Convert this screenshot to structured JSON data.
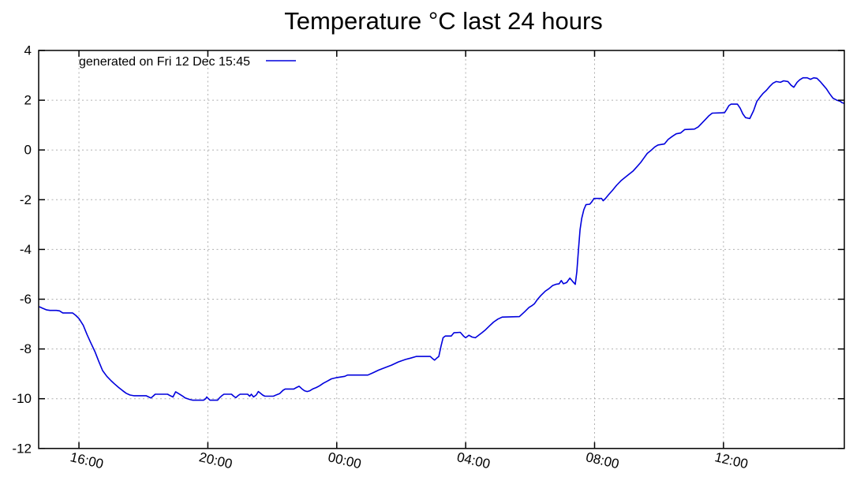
{
  "chart_data": {
    "type": "line",
    "title": "Temperature °C last 24 hours",
    "grid": true,
    "legend_position": "top-left-inside",
    "background_color": "#ffffff",
    "border_color": "#000000",
    "grid_color": "#b0b0b0",
    "x_axis": {
      "label": "",
      "start_time": "14:45",
      "end_time": "15:45",
      "span_hours": 25,
      "ticks": [
        {
          "label": "16:00",
          "hour": 16
        },
        {
          "label": "20:00",
          "hour": 20
        },
        {
          "label": "00:00",
          "hour": 24
        },
        {
          "label": "04:00",
          "hour": 28
        },
        {
          "label": "08:00",
          "hour": 32
        },
        {
          "label": "12:00",
          "hour": 36
        }
      ]
    },
    "y_axis": {
      "label": "",
      "ticks": [
        4,
        2,
        0,
        -2,
        -4,
        -6,
        -8,
        -10,
        -12
      ],
      "ylim": [
        -12,
        4
      ]
    },
    "series": [
      {
        "name": "generated on Fri 12 Dec 15:45",
        "color": "#0000dd",
        "points": [
          [
            "14:46",
            -6.3
          ],
          [
            "14:52",
            -6.36
          ],
          [
            "15:00",
            -6.43
          ],
          [
            "15:06",
            -6.45
          ],
          [
            "15:18",
            -6.45
          ],
          [
            "15:24",
            -6.47
          ],
          [
            "15:30",
            -6.55
          ],
          [
            "15:48",
            -6.55
          ],
          [
            "15:54",
            -6.65
          ],
          [
            "16:00",
            -6.78
          ],
          [
            "16:08",
            -7.05
          ],
          [
            "16:15",
            -7.42
          ],
          [
            "16:22",
            -7.75
          ],
          [
            "16:30",
            -8.12
          ],
          [
            "16:37",
            -8.5
          ],
          [
            "16:44",
            -8.87
          ],
          [
            "16:52",
            -9.1
          ],
          [
            "17:00",
            -9.28
          ],
          [
            "17:06",
            -9.4
          ],
          [
            "17:14",
            -9.55
          ],
          [
            "17:21",
            -9.67
          ],
          [
            "17:28",
            -9.78
          ],
          [
            "17:35",
            -9.85
          ],
          [
            "17:42",
            -9.88
          ],
          [
            "18:05",
            -9.88
          ],
          [
            "18:10",
            -9.93
          ],
          [
            "18:14",
            -9.97
          ],
          [
            "18:18",
            -9.9
          ],
          [
            "18:22",
            -9.82
          ],
          [
            "18:45",
            -9.82
          ],
          [
            "18:50",
            -9.88
          ],
          [
            "18:55",
            -9.93
          ],
          [
            "19:00",
            -9.72
          ],
          [
            "19:06",
            -9.8
          ],
          [
            "19:12",
            -9.88
          ],
          [
            "19:18",
            -9.97
          ],
          [
            "19:26",
            -10.03
          ],
          [
            "19:32",
            -10.06
          ],
          [
            "19:52",
            -10.06
          ],
          [
            "19:56",
            -10.0
          ],
          [
            "19:58",
            -9.93
          ],
          [
            "20:01",
            -10.0
          ],
          [
            "20:04",
            -10.06
          ],
          [
            "20:18",
            -10.06
          ],
          [
            "20:22",
            -9.96
          ],
          [
            "20:26",
            -9.88
          ],
          [
            "20:30",
            -9.82
          ],
          [
            "20:44",
            -9.82
          ],
          [
            "20:48",
            -9.9
          ],
          [
            "20:52",
            -9.96
          ],
          [
            "20:56",
            -9.88
          ],
          [
            "21:00",
            -9.82
          ],
          [
            "21:14",
            -9.82
          ],
          [
            "21:18",
            -9.9
          ],
          [
            "21:21",
            -9.82
          ],
          [
            "21:25",
            -9.93
          ],
          [
            "21:30",
            -9.85
          ],
          [
            "21:34",
            -9.71
          ],
          [
            "21:38",
            -9.78
          ],
          [
            "21:42",
            -9.85
          ],
          [
            "21:46",
            -9.9
          ],
          [
            "22:02",
            -9.9
          ],
          [
            "22:08",
            -9.84
          ],
          [
            "22:14",
            -9.79
          ],
          [
            "22:20",
            -9.66
          ],
          [
            "22:24",
            -9.61
          ],
          [
            "22:40",
            -9.61
          ],
          [
            "22:45",
            -9.55
          ],
          [
            "22:50",
            -9.5
          ],
          [
            "22:55",
            -9.6
          ],
          [
            "23:00",
            -9.68
          ],
          [
            "23:05",
            -9.71
          ],
          [
            "23:10",
            -9.68
          ],
          [
            "23:16",
            -9.6
          ],
          [
            "23:22",
            -9.55
          ],
          [
            "23:28",
            -9.48
          ],
          [
            "23:35",
            -9.38
          ],
          [
            "23:42",
            -9.3
          ],
          [
            "23:50",
            -9.2
          ],
          [
            "00:00",
            -9.15
          ],
          [
            "00:15",
            -9.1
          ],
          [
            "00:20",
            -9.05
          ],
          [
            "00:58",
            -9.05
          ],
          [
            "01:08",
            -8.95
          ],
          [
            "01:18",
            -8.85
          ],
          [
            "01:30",
            -8.75
          ],
          [
            "01:42",
            -8.65
          ],
          [
            "01:55",
            -8.52
          ],
          [
            "02:08",
            -8.42
          ],
          [
            "02:17",
            -8.37
          ],
          [
            "02:28",
            -8.3
          ],
          [
            "02:54",
            -8.3
          ],
          [
            "02:58",
            -8.38
          ],
          [
            "03:02",
            -8.45
          ],
          [
            "03:06",
            -8.37
          ],
          [
            "03:10",
            -8.3
          ],
          [
            "03:14",
            -7.9
          ],
          [
            "03:18",
            -7.55
          ],
          [
            "03:22",
            -7.48
          ],
          [
            "03:33",
            -7.48
          ],
          [
            "03:38",
            -7.35
          ],
          [
            "03:50",
            -7.33
          ],
          [
            "03:56",
            -7.48
          ],
          [
            "04:00",
            -7.55
          ],
          [
            "04:06",
            -7.45
          ],
          [
            "04:12",
            -7.52
          ],
          [
            "04:18",
            -7.55
          ],
          [
            "04:24",
            -7.45
          ],
          [
            "04:30",
            -7.35
          ],
          [
            "04:36",
            -7.25
          ],
          [
            "04:44",
            -7.08
          ],
          [
            "04:52",
            -6.92
          ],
          [
            "05:00",
            -6.8
          ],
          [
            "05:08",
            -6.72
          ],
          [
            "05:40",
            -6.7
          ],
          [
            "05:50",
            -6.5
          ],
          [
            "05:58",
            -6.33
          ],
          [
            "06:04",
            -6.25
          ],
          [
            "06:08",
            -6.18
          ],
          [
            "06:14",
            -6.0
          ],
          [
            "06:20",
            -5.85
          ],
          [
            "06:28",
            -5.68
          ],
          [
            "06:35",
            -5.58
          ],
          [
            "06:42",
            -5.45
          ],
          [
            "06:48",
            -5.4
          ],
          [
            "06:54",
            -5.38
          ],
          [
            "06:58",
            -5.25
          ],
          [
            "07:02",
            -5.38
          ],
          [
            "07:08",
            -5.33
          ],
          [
            "07:14",
            -5.15
          ],
          [
            "07:19",
            -5.28
          ],
          [
            "07:24",
            -5.4
          ],
          [
            "07:27",
            -4.9
          ],
          [
            "07:30",
            -4.0
          ],
          [
            "07:33",
            -3.2
          ],
          [
            "07:36",
            -2.75
          ],
          [
            "07:40",
            -2.4
          ],
          [
            "07:44",
            -2.2
          ],
          [
            "07:51",
            -2.18
          ],
          [
            "07:55",
            -2.08
          ],
          [
            "07:59",
            -1.95
          ],
          [
            "08:13",
            -1.95
          ],
          [
            "08:16",
            -2.04
          ],
          [
            "08:20",
            -1.96
          ],
          [
            "08:26",
            -1.8
          ],
          [
            "08:33",
            -1.63
          ],
          [
            "08:41",
            -1.42
          ],
          [
            "08:50",
            -1.22
          ],
          [
            "09:00",
            -1.05
          ],
          [
            "09:12",
            -0.84
          ],
          [
            "09:20",
            -0.65
          ],
          [
            "09:26",
            -0.5
          ],
          [
            "09:32",
            -0.32
          ],
          [
            "09:38",
            -0.14
          ],
          [
            "09:45",
            -0.02
          ],
          [
            "09:52",
            0.12
          ],
          [
            "09:58",
            0.2
          ],
          [
            "10:10",
            0.24
          ],
          [
            "10:17",
            0.42
          ],
          [
            "10:25",
            0.55
          ],
          [
            "10:32",
            0.65
          ],
          [
            "10:40",
            0.68
          ],
          [
            "10:48",
            0.82
          ],
          [
            "11:06",
            0.84
          ],
          [
            "11:13",
            0.93
          ],
          [
            "11:20",
            1.08
          ],
          [
            "11:27",
            1.24
          ],
          [
            "11:33",
            1.38
          ],
          [
            "11:39",
            1.48
          ],
          [
            "12:02",
            1.5
          ],
          [
            "12:06",
            1.63
          ],
          [
            "12:10",
            1.78
          ],
          [
            "12:14",
            1.84
          ],
          [
            "12:26",
            1.84
          ],
          [
            "12:31",
            1.68
          ],
          [
            "12:36",
            1.45
          ],
          [
            "12:41",
            1.3
          ],
          [
            "12:49",
            1.26
          ],
          [
            "12:56",
            1.58
          ],
          [
            "13:02",
            1.95
          ],
          [
            "13:08",
            2.12
          ],
          [
            "13:14",
            2.28
          ],
          [
            "13:20",
            2.4
          ],
          [
            "13:26",
            2.55
          ],
          [
            "13:32",
            2.68
          ],
          [
            "13:38",
            2.75
          ],
          [
            "13:46",
            2.72
          ],
          [
            "13:52",
            2.78
          ],
          [
            "14:00",
            2.75
          ],
          [
            "14:06",
            2.6
          ],
          [
            "14:11",
            2.52
          ],
          [
            "14:17",
            2.72
          ],
          [
            "14:22",
            2.82
          ],
          [
            "14:28",
            2.9
          ],
          [
            "14:36",
            2.9
          ],
          [
            "14:42",
            2.84
          ],
          [
            "14:48",
            2.9
          ],
          [
            "14:54",
            2.88
          ],
          [
            "15:00",
            2.75
          ],
          [
            "15:06",
            2.6
          ],
          [
            "15:12",
            2.45
          ],
          [
            "15:18",
            2.25
          ],
          [
            "15:24",
            2.08
          ],
          [
            "15:31",
            2.0
          ],
          [
            "15:37",
            1.96
          ],
          [
            "15:41",
            1.9
          ],
          [
            "15:45",
            1.87
          ]
        ]
      }
    ]
  }
}
